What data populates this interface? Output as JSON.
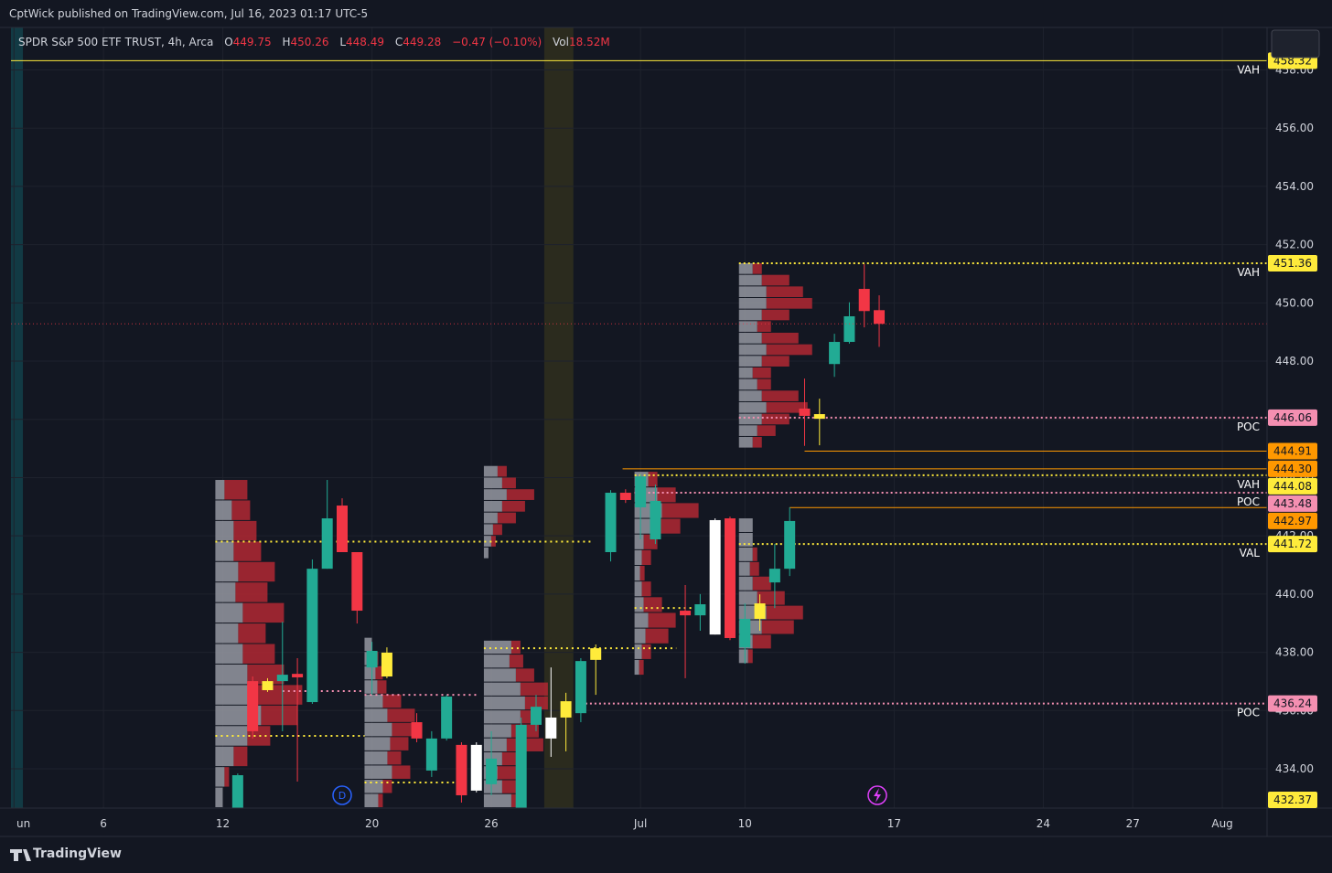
{
  "header": {
    "published": "CptWick published on TradingView.com, Jul 16, 2023 01:17 UTC-5"
  },
  "footer": {
    "brand": "TradingView"
  },
  "chart_data": {
    "type": "candlestick",
    "symbol": "SPDR S&P 500 ETF TRUST, 4h, Arca",
    "legend": {
      "open_prefix": "O",
      "high_prefix": "H",
      "low_prefix": "L",
      "close_prefix": "C",
      "change": "−0.47 (−0.10%)",
      "volume_prefix": "Vol",
      "volume": "18.52M"
    },
    "candles": {
      "open": [
        432.65,
        437.01,
        436.7,
        437.01,
        437.26,
        436.29,
        440.87,
        443.04,
        441.44,
        437.48,
        437.17,
        null,
        435.6,
        433.94,
        435.04,
        434.82,
        433.25,
        433.47,
        null,
        432.65,
        435.51,
        435.04,
        435.76,
        435.91,
        437.74,
        441.44,
        443.48,
        442.98,
        441.88,
        null,
        439.43,
        439.27,
        438.61,
        442.6,
        438.17,
        439.15,
        440.4,
        440.87,
        446.37,
        446.02,
        447.9,
        448.66,
        450.48,
        449.75
      ],
      "high": [
        433.84,
        437.17,
        437.11,
        439.05,
        437.8,
        441.19,
        443.92,
        443.29,
        441.44,
        438.36,
        438.17,
        null,
        435.91,
        435.29,
        436.54,
        434.91,
        434.91,
        435.29,
        null,
        435.76,
        436.54,
        437.48,
        436.61,
        437.8,
        438.27,
        443.57,
        443.6,
        444.11,
        443.76,
        null,
        440.31,
        440.0,
        442.6,
        442.66,
        439.68,
        439.99,
        441.72,
        442.98,
        447.4,
        446.71,
        448.94,
        450.02,
        451.33,
        450.26
      ],
      "low": [
        432.65,
        435.04,
        436.64,
        435.29,
        433.56,
        436.23,
        440.87,
        441.44,
        438.99,
        436.54,
        437.11,
        null,
        434.91,
        433.72,
        434.97,
        432.84,
        433.19,
        433.09,
        null,
        432.65,
        435.29,
        434.41,
        434.6,
        435.6,
        436.54,
        441.12,
        443.13,
        441.88,
        441.72,
        null,
        437.11,
        438.74,
        438.61,
        438.42,
        437.61,
        438.74,
        439.52,
        440.62,
        445.09,
        445.11,
        447.46,
        448.6,
        449.16,
        448.49
      ],
      "close": [
        433.78,
        435.29,
        437.01,
        437.23,
        437.14,
        440.87,
        442.6,
        441.44,
        439.43,
        438.05,
        437.99,
        null,
        435.04,
        435.04,
        436.48,
        433.09,
        434.82,
        434.35,
        null,
        435.51,
        436.13,
        435.76,
        436.32,
        437.7,
        438.14,
        443.48,
        443.23,
        444.04,
        443.2,
        null,
        439.27,
        439.65,
        442.54,
        438.49,
        439.15,
        439.68,
        440.87,
        442.51,
        446.12,
        446.18,
        448.66,
        449.54,
        449.72,
        449.28
      ],
      "colors": [
        "#22ab94",
        "#f23645",
        "#ffeb3b",
        "#22ab94",
        "#f23645",
        "#22ab94",
        "#22ab94",
        "#f23645",
        "#f23645",
        "#22ab94",
        "#ffeb3b",
        null,
        "#f23645",
        "#22ab94",
        "#22ab94",
        "#f23645",
        "#ffffff",
        "#22ab94",
        null,
        "#22ab94",
        "#22ab94",
        "#ffffff",
        "#ffeb3b",
        "#22ab94",
        "#ffeb3b",
        "#22ab94",
        "#f23645",
        "#22ab94",
        "#22ab94",
        null,
        "#f23645",
        "#22ab94",
        "#ffffff",
        "#f23645",
        "#22ab94",
        "#ffeb3b",
        "#22ab94",
        "#22ab94",
        "#f23645",
        "#ffeb3b",
        "#22ab94",
        "#22ab94",
        "#f23645",
        "#f23645"
      ]
    },
    "xlim": [
      -15.2,
      69
    ],
    "xticks": [
      {
        "value": -15,
        "label": "un"
      },
      {
        "value": -9,
        "label": "6"
      },
      {
        "value": -1,
        "label": "12"
      },
      {
        "value": 9,
        "label": "20"
      },
      {
        "value": 17,
        "label": "26"
      },
      {
        "value": 27,
        "label": "Jul"
      },
      {
        "value": 34,
        "label": "10"
      },
      {
        "value": 44,
        "label": "17"
      },
      {
        "value": 54,
        "label": "24"
      },
      {
        "value": 60,
        "label": "27"
      },
      {
        "value": 66,
        "label": "Aug"
      }
    ],
    "ylim": [
      432.65,
      459.46
    ],
    "yticks": [
      {
        "value": 434,
        "label": "434.00"
      },
      {
        "value": 436,
        "label": "436.00"
      },
      {
        "value": 438,
        "label": "438.00"
      },
      {
        "value": 440,
        "label": "440.00"
      },
      {
        "value": 442,
        "label": "442.00"
      },
      {
        "value": 444,
        "label": "444.00"
      },
      {
        "value": 446,
        "label": "446.00"
      },
      {
        "value": 448,
        "label": "448.00"
      },
      {
        "value": 450,
        "label": "450.00"
      },
      {
        "value": 452,
        "label": "452.00"
      },
      {
        "value": 454,
        "label": "454.00"
      },
      {
        "value": 456,
        "label": "456.00"
      },
      {
        "value": 458,
        "label": "458.00"
      }
    ],
    "grid": true,
    "last_price_color": "#f23645",
    "highlights": [
      {
        "range": [
          -15.2,
          -14.4
        ],
        "color": "#123a44"
      },
      {
        "range": [
          20.55,
          22.5
        ],
        "color": "#2b2b1e"
      }
    ],
    "levels": [
      {
        "value": 458.32,
        "label": "458.32",
        "name": "VAH",
        "color": "#ffeb3b",
        "style": "solid",
        "start": -15.2
      },
      {
        "value": 451.36,
        "label": "451.36",
        "name": "VAH",
        "color": "#ffeb3b",
        "style": "dotted",
        "start": 33.6
      },
      {
        "value": 446.06,
        "label": "446.06",
        "name": "POC",
        "color": "#f48fb1",
        "style": "dotted",
        "start": 33.6
      },
      {
        "value": 444.91,
        "label": "444.91",
        "color": "#ff9800",
        "style": "solid",
        "start": 38
      },
      {
        "value": 444.3,
        "label": "444.30",
        "color": "#ff9800",
        "style": "solid",
        "start": 25.8
      },
      {
        "value": 444.08,
        "label": "444.08",
        "name": "VAH",
        "color": "#ffeb3b",
        "style": "dotted",
        "start": 26.6
      },
      {
        "value": 443.48,
        "label": "443.48",
        "name": "POC",
        "color": "#f48fb1",
        "style": "dotted",
        "start": 26.6
      },
      {
        "value": 442.97,
        "label": "442.97",
        "color": "#ff9800",
        "style": "solid",
        "start": 37
      },
      {
        "value": 441.72,
        "label": "441.72",
        "name": "VAL",
        "color": "#ffeb3b",
        "style": "dotted",
        "start": 33.6
      },
      {
        "value": 436.24,
        "label": "436.24",
        "name": "POC",
        "color": "#f48fb1",
        "style": "dotted",
        "start": 23
      }
    ],
    "segments": [
      {
        "value": 441.8,
        "start": -1.5,
        "end": 23.7,
        "color": "#ffeb3b"
      },
      {
        "value": 435.13,
        "start": -1.5,
        "end": 8.5,
        "color": "#ffeb3b"
      },
      {
        "value": 436.67,
        "start": 3,
        "end": 8.5,
        "color": "#f48fb1"
      },
      {
        "value": 433.53,
        "start": 8.5,
        "end": 14.5,
        "color": "#ffeb3b"
      },
      {
        "value": 436.54,
        "start": 8.5,
        "end": 16,
        "color": "#f48fb1"
      },
      {
        "value": 438.14,
        "start": 16.5,
        "end": 29.4,
        "color": "#ffeb3b"
      },
      {
        "value": 439.52,
        "start": 26.6,
        "end": 30.6,
        "color": "#ffeb3b"
      }
    ],
    "profiles": [
      {
        "start": -1.5,
        "price_range": [
          432.65,
          443.92
        ],
        "rows": [
          [
            10,
            25
          ],
          [
            18,
            20
          ],
          [
            20,
            25
          ],
          [
            20,
            30
          ],
          [
            25,
            40
          ],
          [
            22,
            35
          ],
          [
            30,
            45
          ],
          [
            25,
            30
          ],
          [
            30,
            35
          ],
          [
            35,
            40
          ],
          [
            45,
            50
          ],
          [
            50,
            40
          ],
          [
            35,
            25
          ],
          [
            20,
            15
          ],
          [
            10,
            5
          ],
          [
            8,
            0
          ]
        ]
      },
      {
        "start": 8.5,
        "price_range": [
          432.65,
          438.5
        ],
        "rows": [
          [
            8,
            0
          ],
          [
            10,
            5
          ],
          [
            12,
            8
          ],
          [
            14,
            10
          ],
          [
            20,
            20
          ],
          [
            25,
            30
          ],
          [
            30,
            30
          ],
          [
            28,
            20
          ],
          [
            25,
            15
          ],
          [
            30,
            20
          ],
          [
            20,
            10
          ],
          [
            15,
            5
          ]
        ]
      },
      {
        "start": 16.5,
        "price_range": [
          432.65,
          438.4
        ],
        "rows": [
          [
            30,
            10
          ],
          [
            28,
            15
          ],
          [
            35,
            20
          ],
          [
            40,
            30
          ],
          [
            45,
            25
          ],
          [
            40,
            20
          ],
          [
            30,
            30
          ],
          [
            25,
            40
          ],
          [
            20,
            25
          ],
          [
            15,
            20
          ],
          [
            20,
            15
          ],
          [
            30,
            10
          ]
        ]
      },
      {
        "start": 16.5,
        "price_range": [
          441.2,
          444.4
        ],
        "rows": [
          [
            15,
            10
          ],
          [
            20,
            15
          ],
          [
            25,
            30
          ],
          [
            20,
            25
          ],
          [
            15,
            20
          ],
          [
            10,
            10
          ],
          [
            8,
            5
          ],
          [
            5,
            0
          ]
        ]
      },
      {
        "start": 26.6,
        "price_range": [
          437.2,
          444.2
        ],
        "rows": [
          [
            15,
            10
          ],
          [
            25,
            20
          ],
          [
            30,
            40
          ],
          [
            20,
            30
          ],
          [
            10,
            15
          ],
          [
            8,
            10
          ],
          [
            6,
            5
          ],
          [
            8,
            10
          ],
          [
            10,
            20
          ],
          [
            15,
            30
          ],
          [
            12,
            25
          ],
          [
            8,
            10
          ],
          [
            5,
            5
          ]
        ]
      },
      {
        "start": 33.6,
        "price_range": [
          437.6,
          442.6
        ],
        "rows": [
          [
            15,
            0
          ],
          [
            15,
            0
          ],
          [
            15,
            5
          ],
          [
            12,
            10
          ],
          [
            15,
            20
          ],
          [
            20,
            30
          ],
          [
            30,
            40
          ],
          [
            25,
            35
          ],
          [
            15,
            20
          ],
          [
            10,
            5
          ]
        ]
      },
      {
        "start": 33.6,
        "price_range": [
          445.0,
          451.36
        ],
        "rows": [
          [
            15,
            10
          ],
          [
            25,
            30
          ],
          [
            30,
            40
          ],
          [
            30,
            50
          ],
          [
            25,
            30
          ],
          [
            20,
            15
          ],
          [
            25,
            40
          ],
          [
            30,
            50
          ],
          [
            25,
            30
          ],
          [
            15,
            20
          ],
          [
            20,
            15
          ],
          [
            25,
            40
          ],
          [
            30,
            45
          ],
          [
            25,
            30
          ],
          [
            20,
            20
          ],
          [
            15,
            10
          ]
        ]
      }
    ],
    "profile_colors": [
      "#9598a1",
      "#b22833"
    ],
    "bottom_tag": 432.37,
    "bottom_tag_color": "#ffeb3b",
    "event_marker": "D"
  }
}
